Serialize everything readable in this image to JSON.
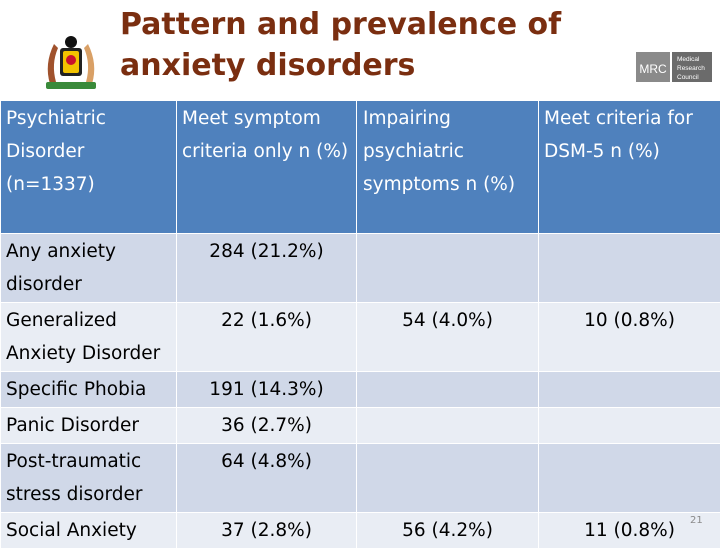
{
  "slide": {
    "title": "Pattern and prevalence of anxiety disorders",
    "page_number": "21",
    "logo_text": [
      "Medical",
      "Research",
      "Council"
    ],
    "logo_abbrev": "MRC"
  },
  "table": {
    "headers": [
      "Psychiatric Disorder (n=1337)",
      "Meet symptom criteria only n (%)",
      "Impairing psychiatric symptoms n (%)",
      "Meet criteria for DSM-5 n (%)"
    ],
    "rows": [
      [
        "Any anxiety disorder",
        "284 (21.2%)",
        "",
        ""
      ],
      [
        "Generalized Anxiety Disorder",
        "22 (1.6%)",
        "54 (4.0%)",
        "10 (0.8%)"
      ],
      [
        "Specific Phobia",
        "191 (14.3%)",
        "",
        ""
      ],
      [
        "Panic Disorder",
        "36 (2.7%)",
        "",
        ""
      ],
      [
        "Post-traumatic stress disorder",
        "64 (4.8%)",
        "",
        ""
      ],
      [
        "Social Anxiety",
        "37 (2.8%)",
        "56 (4.2%)",
        "11 (0.8%)"
      ]
    ]
  },
  "colors": {
    "title": "#7a2e10",
    "header_bg": "#4f81bd",
    "row_dark": "#d0d8e8",
    "row_light": "#e9edf4"
  }
}
